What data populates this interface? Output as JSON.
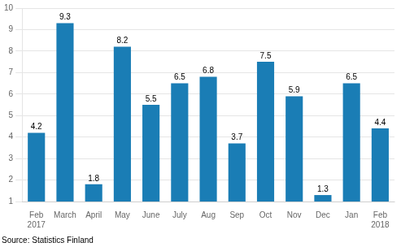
{
  "chart_data": {
    "type": "bar",
    "categories": [
      "Feb\n2017",
      "March",
      "April",
      "May",
      "June",
      "July",
      "Aug",
      "Sep",
      "Oct",
      "Nov",
      "Dec",
      "Jan",
      "Feb\n2018"
    ],
    "values": [
      4.2,
      9.3,
      1.8,
      8.2,
      5.5,
      6.5,
      6.8,
      3.7,
      7.5,
      5.9,
      1.3,
      6.5,
      4.4
    ],
    "color": "#1a7db5",
    "ylim": [
      1,
      10
    ],
    "yticks": [
      1,
      2,
      3,
      4,
      5,
      6,
      7,
      8,
      9,
      10
    ],
    "grid": true,
    "data_labels": true,
    "annotations": [
      "Source: Statistics Finland"
    ]
  }
}
